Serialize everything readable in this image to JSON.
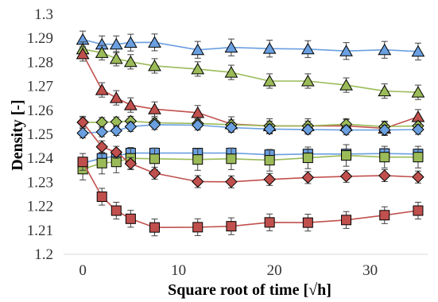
{
  "chart_data": {
    "type": "scatter",
    "title": "",
    "xlabel": "Square root of time [√h]",
    "ylabel": "Density [-]",
    "xlim": [
      -2,
      36
    ],
    "ylim": [
      1.2,
      1.3
    ],
    "xticks": [
      0,
      10,
      20,
      30
    ],
    "yticks": [
      1.2,
      1.21,
      1.22,
      1.23,
      1.24,
      1.25,
      1.26,
      1.27,
      1.28,
      1.29,
      1.3
    ],
    "ytick_labels": [
      "1.2",
      "1.21",
      "1.22",
      "1.23",
      "1.24",
      "1.25",
      "1.26",
      "1.27",
      "1.28",
      "1.29",
      "1.3"
    ],
    "xtick_labels": [
      "0",
      "10",
      "20",
      "30"
    ],
    "grid": false,
    "series": [
      {
        "marker": "triangle",
        "color": "#4a7ebb",
        "fill": "#6a9fe0",
        "error": 0.0035,
        "x": [
          0,
          2,
          3.5,
          5,
          7.5,
          12,
          15.5,
          19.5,
          23.5,
          27.5,
          31.5,
          35
        ],
        "y": [
          1.2895,
          1.2875,
          1.2875,
          1.2882,
          1.2883,
          1.2852,
          1.2862,
          1.2857,
          1.2855,
          1.2847,
          1.2852,
          1.2845
        ]
      },
      {
        "marker": "triangle",
        "color": "#7a9a3a",
        "fill": "#9bbb59",
        "error": 0.003,
        "x": [
          0,
          2,
          3.5,
          5,
          7.5,
          12,
          15.5,
          19.5,
          23.5,
          27.5,
          31.5,
          35
        ],
        "y": [
          1.2855,
          1.284,
          1.2815,
          1.2802,
          1.2785,
          1.2772,
          1.2758,
          1.2722,
          1.2722,
          1.2705,
          1.268,
          1.2675
        ]
      },
      {
        "marker": "triangle",
        "color": "#943634",
        "fill": "#c0504d",
        "error": 0.003,
        "x": [
          0,
          2,
          3.5,
          5,
          7.5,
          12,
          15.5,
          19.5,
          23.5,
          27.5,
          31.5,
          35
        ],
        "y": [
          1.2835,
          1.2685,
          1.2652,
          1.2622,
          1.2605,
          1.259,
          1.2543,
          1.2535,
          1.2535,
          1.2535,
          1.2525,
          1.2573
        ]
      },
      {
        "marker": "diamond",
        "color": "#7a9a3a",
        "fill": "#9bbb59",
        "error": 0.002,
        "x": [
          0,
          2,
          3.5,
          5,
          7.5,
          12,
          15.5,
          19.5,
          23.5,
          27.5,
          31.5,
          35
        ],
        "y": [
          1.255,
          1.255,
          1.2552,
          1.2555,
          1.2548,
          1.2545,
          1.254,
          1.2535,
          1.2535,
          1.2542,
          1.2532,
          1.2535
        ]
      },
      {
        "marker": "diamond",
        "color": "#4a7ebb",
        "fill": "#6a9fe0",
        "error": 0.002,
        "x": [
          0,
          2,
          3.5,
          5,
          7.5,
          12,
          15.5,
          19.5,
          23.5,
          27.5,
          31.5,
          35
        ],
        "y": [
          1.2505,
          1.251,
          1.2515,
          1.2532,
          1.254,
          1.2538,
          1.2528,
          1.2522,
          1.252,
          1.2518,
          1.2518,
          1.252
        ]
      },
      {
        "marker": "square",
        "color": "#4a7ebb",
        "fill": "#6a9fe0",
        "error": 0.002,
        "x": [
          0,
          2,
          3.5,
          5,
          7.5,
          12,
          15.5,
          19.5,
          23.5,
          27.5,
          31.5,
          35
        ],
        "y": [
          1.238,
          1.24,
          1.241,
          1.2422,
          1.2422,
          1.2422,
          1.2422,
          1.2415,
          1.2418,
          1.2418,
          1.242,
          1.2418
        ]
      },
      {
        "marker": "square",
        "color": "#7a9a3a",
        "fill": "#9bbb59",
        "error": 0.0045,
        "x": [
          0,
          2,
          3.5,
          5,
          7.5,
          12,
          15.5,
          19.5,
          23.5,
          27.5,
          31.5,
          35
        ],
        "y": [
          1.2355,
          1.238,
          1.2385,
          1.24,
          1.2398,
          1.2395,
          1.2398,
          1.2392,
          1.2402,
          1.2412,
          1.2405,
          1.2405
        ]
      },
      {
        "marker": "diamond",
        "color": "#943634",
        "fill": "#c0504d",
        "error": 0.0025,
        "x": [
          0,
          2,
          3.5,
          5,
          7.5,
          12,
          15.5,
          19.5,
          23.5,
          27.5,
          31.5,
          35
        ],
        "y": [
          1.255,
          1.2448,
          1.2425,
          1.2378,
          1.2338,
          1.2303,
          1.2302,
          1.2312,
          1.232,
          1.2325,
          1.2328,
          1.2322
        ]
      },
      {
        "marker": "square",
        "color": "#943634",
        "fill": "#c0504d",
        "error": 0.0035,
        "x": [
          0,
          2,
          3.5,
          5,
          7.5,
          12,
          15.5,
          19.5,
          23.5,
          27.5,
          31.5,
          35
        ],
        "y": [
          1.2385,
          1.224,
          1.2182,
          1.2148,
          1.2112,
          1.2113,
          1.2117,
          1.2133,
          1.2132,
          1.2143,
          1.2163,
          1.2182
        ]
      }
    ]
  }
}
